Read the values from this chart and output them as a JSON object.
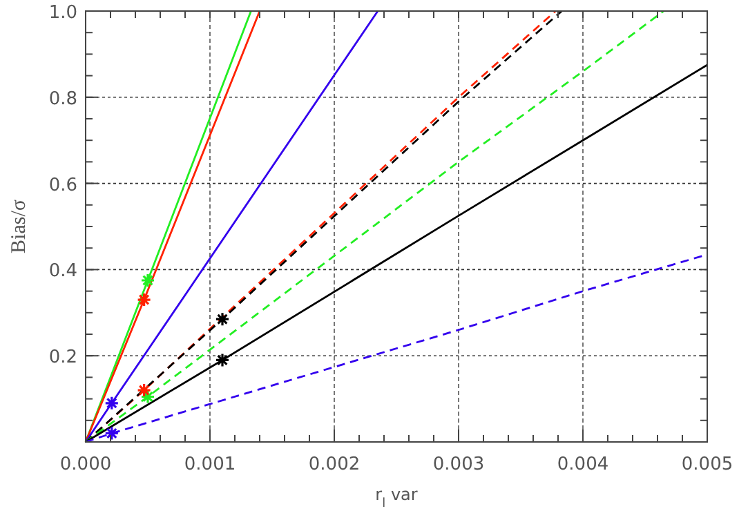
{
  "chart_data": {
    "type": "line",
    "xlabel": "r$_{l}$ var",
    "ylabel": "Bias/σ",
    "xlim": [
      0,
      0.005
    ],
    "ylim": [
      0,
      1.0
    ],
    "xticks": [
      {
        "value": 0,
        "label": "0.000"
      },
      {
        "value": 0.001,
        "label": "0.001"
      },
      {
        "value": 0.002,
        "label": "0.002"
      },
      {
        "value": 0.003,
        "label": "0.003"
      },
      {
        "value": 0.004,
        "label": "0.004"
      },
      {
        "value": 0.005,
        "label": "0.005"
      }
    ],
    "yticks": [
      {
        "value": 0,
        "label": null
      },
      {
        "value": 0.2,
        "label": "0.2"
      },
      {
        "value": 0.4,
        "label": "0.4"
      },
      {
        "value": 0.6,
        "label": "0.6"
      },
      {
        "value": 0.8,
        "label": "0.8"
      },
      {
        "value": 1.0,
        "label": "1.0"
      }
    ],
    "grid": true,
    "series": [
      {
        "color": "#22ee22",
        "line_style": "solid",
        "x": [
          0,
          0.0005,
          0.00133
        ],
        "values": [
          0,
          0.375,
          1.0
        ]
      },
      {
        "color": "#ff2200",
        "line_style": "solid",
        "x": [
          0,
          0.00047,
          0.0014
        ],
        "values": [
          0,
          0.33,
          1.0
        ]
      },
      {
        "color": "#3300ee",
        "line_style": "solid",
        "x": [
          0,
          0.00021,
          0.00235
        ],
        "values": [
          0,
          0.09,
          1.0
        ]
      },
      {
        "color": "#ff2200",
        "line_style": "dashed",
        "x": [
          0,
          0.00047,
          0.003,
          0.00378
        ],
        "values": [
          0,
          0.12,
          0.8,
          1.0
        ]
      },
      {
        "color": "#000000",
        "line_style": "dashed",
        "x": [
          0,
          0.0011,
          0.003,
          0.00383
        ],
        "values": [
          0,
          0.285,
          0.79,
          1.0
        ]
      },
      {
        "color": "#22ee22",
        "line_style": "dashed",
        "x": [
          0,
          0.0005,
          0.003,
          0.004,
          0.00465
        ],
        "values": [
          0,
          0.105,
          0.65,
          0.86,
          1.0
        ]
      },
      {
        "color": "#000000",
        "line_style": "solid",
        "x": [
          0,
          0.0011,
          0.003,
          0.004,
          0.005
        ],
        "values": [
          0,
          0.19,
          0.525,
          0.7,
          0.875
        ]
      },
      {
        "color": "#3300ee",
        "line_style": "dashed",
        "x": [
          0,
          0.00021,
          0.003,
          0.004,
          0.005
        ],
        "values": [
          0,
          0.02,
          0.26,
          0.35,
          0.435
        ]
      },
      {
        "type": "scatter",
        "color": "#22ee22",
        "marker": "cross",
        "x": [
          0.0005,
          0.0005
        ],
        "values": [
          0.375,
          0.105
        ]
      },
      {
        "type": "scatter",
        "color": "#ff2200",
        "marker": "cross",
        "x": [
          0.00047,
          0.00047
        ],
        "values": [
          0.33,
          0.12
        ]
      },
      {
        "type": "scatter",
        "color": "#3300ee",
        "marker": "cross",
        "x": [
          0.00021,
          0.00021
        ],
        "values": [
          0.09,
          0.02
        ]
      },
      {
        "type": "scatter",
        "color": "#000000",
        "marker": "cross",
        "x": [
          0.0011,
          0.0011
        ],
        "values": [
          0.285,
          0.19
        ]
      }
    ]
  }
}
